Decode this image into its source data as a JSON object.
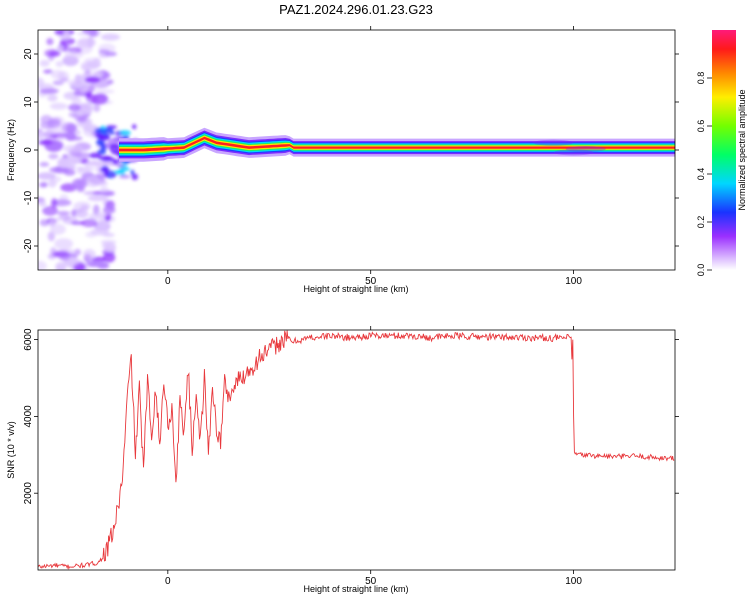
{
  "figure": {
    "title": "PAZ1.2024.296.01.23.G23"
  },
  "chart_data": [
    {
      "type": "heatmap",
      "xlabel": "Height of straight line (km)",
      "ylabel": "Frequency (Hz)",
      "xlim": [
        -32,
        125
      ],
      "ylim": [
        -25,
        25
      ],
      "xticks": [
        0,
        50,
        100
      ],
      "yticks": [
        20,
        10,
        0,
        -10,
        -20
      ],
      "grid": false,
      "colorbar": {
        "label": "Normalized spectral amplitude",
        "range": [
          0,
          1
        ],
        "ticks": [
          0.0,
          0.2,
          0.4,
          0.6,
          0.8
        ],
        "tick_labels": [
          "0.0",
          "0.2",
          "0.4",
          "0.6",
          "0.8"
        ],
        "colormap": "rainbow (white-violet-blue-cyan-green-yellow-red-magenta)"
      },
      "features": {
        "dominant_ridge": {
          "x_from": -12,
          "x_to": 125,
          "frequency_hz": 0.5,
          "amplitude": 1.0
        },
        "ridge_wobble": [
          {
            "x": -6,
            "frequency_hz": 0.0
          },
          {
            "x": 4,
            "frequency_hz": 0.5
          },
          {
            "x": 9,
            "frequency_hz": 2.5
          },
          {
            "x": 12,
            "frequency_hz": 1.5
          },
          {
            "x": 20,
            "frequency_hz": 0.5
          },
          {
            "x": 30,
            "frequency_hz": 1.0
          }
        ],
        "diffuse_noise_region": {
          "x_from": -32,
          "x_to": -14,
          "frequency_range_hz": [
            -25,
            25
          ],
          "amplitude": 0.1
        }
      }
    },
    {
      "type": "line",
      "xlabel": "Height of straight line (km)",
      "ylabel": "SNR (10 * v/v)",
      "xlim": [
        -32,
        125
      ],
      "ylim": [
        0,
        6250
      ],
      "xticks": [
        0,
        50,
        100
      ],
      "yticks": [
        2000,
        4000,
        6000
      ],
      "grid": false,
      "color": "#e8383c",
      "series": [
        {
          "x": [
            -32,
            -28,
            -24,
            -20,
            -17,
            -15,
            -13,
            -12,
            -11,
            -10,
            -9,
            -8,
            -7,
            -6,
            -5,
            -4,
            -3,
            -2,
            -1,
            0,
            1,
            2,
            3,
            4,
            5,
            6,
            7,
            8,
            9,
            10,
            11,
            12,
            13,
            14,
            15,
            17,
            19,
            21,
            23,
            25,
            27,
            29,
            31,
            35,
            40,
            45,
            50,
            55,
            60,
            65,
            70,
            75,
            80,
            85,
            90,
            95,
            99.5,
            100,
            101,
            105,
            110,
            115,
            120,
            125
          ],
          "y": [
            80,
            120,
            90,
            130,
            200,
            500,
            1200,
            1800,
            2600,
            4500,
            5500,
            3000,
            4700,
            2600,
            4900,
            3500,
            4800,
            3200,
            5000,
            3800,
            4200,
            2300,
            4400,
            3600,
            5300,
            3100,
            4700,
            3300,
            5000,
            3000,
            4800,
            3700,
            3300,
            4900,
            4500,
            4900,
            5100,
            5300,
            5600,
            5700,
            5900,
            6000,
            5950,
            6050,
            6100,
            6050,
            6100,
            6100,
            6100,
            6050,
            6100,
            6080,
            6070,
            6060,
            6050,
            6040,
            6050,
            3050,
            3000,
            2980,
            2950,
            2970,
            2930,
            2900
          ]
        }
      ]
    }
  ]
}
